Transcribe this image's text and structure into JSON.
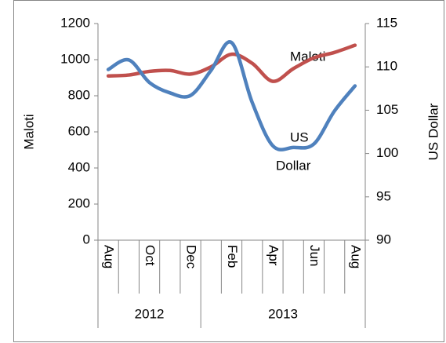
{
  "chart_data": {
    "type": "line",
    "categories": [
      "Aug",
      null,
      "Oct",
      null,
      "Dec",
      null,
      "Feb",
      null,
      "Apr",
      null,
      "Jun",
      null,
      "Aug"
    ],
    "category_groups": [
      "2012",
      "2013"
    ],
    "series": [
      {
        "name": "Maloti",
        "color": "#c0504d",
        "axis": "y",
        "values": [
          910,
          915,
          935,
          940,
          920,
          960,
          1030,
          980,
          880,
          950,
          1010,
          1040,
          1080
        ]
      },
      {
        "name": "US Dollar",
        "color": "#4f81bd",
        "axis": "y2",
        "values": [
          109.7,
          110.8,
          108.2,
          107.0,
          106.7,
          109.6,
          112.8,
          105.9,
          100.9,
          100.7,
          101.1,
          104.9,
          107.8
        ]
      }
    ],
    "y_label": "Maloti",
    "y2_label": "US Dollar",
    "annotations": [
      "Maloti",
      "US",
      "Dollar"
    ],
    "ylim": [
      0,
      1200
    ],
    "yticks": [
      0,
      200,
      400,
      600,
      800,
      1000,
      1200
    ],
    "y2lim": [
      90,
      115
    ],
    "y2ticks": [
      90,
      95,
      100,
      105,
      110,
      115
    ],
    "grid": false
  }
}
